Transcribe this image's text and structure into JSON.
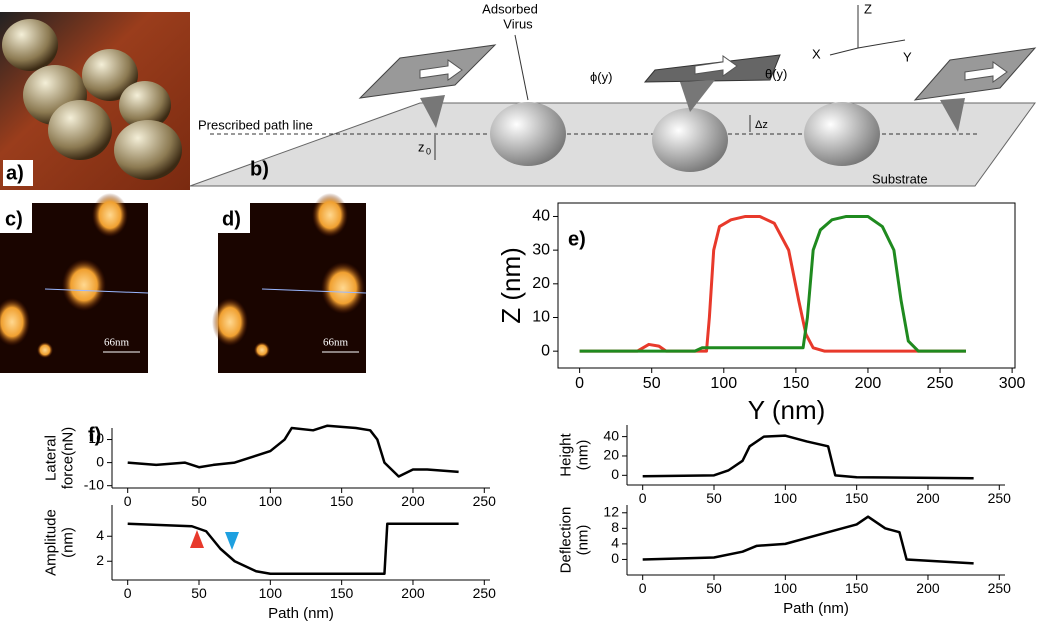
{
  "panels": {
    "a": "a)",
    "b": "b)",
    "c": "c)",
    "d": "d)",
    "e": "e)",
    "f": "f)"
  },
  "scale_bars": [
    "66nm",
    "66nm"
  ],
  "diagram": {
    "adsorbed": [
      "Adsorbed",
      "Virus"
    ],
    "path_line": "Prescribed path line",
    "z0": "z",
    "z0_sub": "0",
    "dz": "Δz",
    "phi": "ϕ(y)",
    "theta": "θ(y)",
    "substrate": "Substrate",
    "axis_z": "Z",
    "axis_x": "X",
    "axis_y": "Y"
  },
  "chart_data": [
    {
      "type": "line",
      "xlabel": "Y (nm)",
      "ylabel": "Z (nm)",
      "xlim": [
        -15,
        302
      ],
      "ylim": [
        -5,
        44
      ],
      "xticks": [
        0,
        50,
        100,
        150,
        200,
        250,
        300
      ],
      "yticks": [
        0,
        10,
        20,
        30,
        40
      ],
      "series": [
        {
          "color": "#e8392b",
          "x": [
            0,
            40,
            48,
            55,
            60,
            88,
            90,
            93,
            97,
            105,
            115,
            125,
            135,
            145,
            152,
            157,
            162,
            170,
            268
          ],
          "values": [
            0,
            0,
            2,
            1.5,
            0,
            0,
            10,
            30,
            37,
            39,
            40,
            40,
            38,
            30,
            15,
            5,
            1,
            0,
            0
          ]
        },
        {
          "color": "#1f8a1f",
          "x": [
            0,
            80,
            85,
            90,
            155,
            158,
            162,
            167,
            175,
            185,
            200,
            210,
            218,
            223,
            228,
            235,
            268
          ],
          "values": [
            0,
            0,
            1,
            1,
            1,
            10,
            30,
            36,
            39,
            40,
            40,
            37,
            30,
            15,
            3,
            0,
            0
          ]
        }
      ]
    },
    {
      "type": "line",
      "ylabel": [
        "Lateral",
        "force(nN)"
      ],
      "xlim": [
        -11,
        254
      ],
      "ylim": [
        -11,
        15
      ],
      "xticks": [
        0,
        50,
        100,
        150,
        200,
        250
      ],
      "yticks": [
        -10,
        0,
        10
      ],
      "series": [
        {
          "color": "#000000",
          "x": [
            0,
            20,
            40,
            50,
            60,
            75,
            90,
            100,
            110,
            115,
            130,
            140,
            160,
            170,
            175,
            180,
            190,
            200,
            210,
            232
          ],
          "values": [
            0,
            -1,
            0,
            -2,
            -1,
            0,
            3,
            5,
            10,
            15,
            14,
            16,
            15,
            14,
            10,
            0,
            -6,
            -3,
            -3,
            -4
          ]
        }
      ]
    },
    {
      "type": "line",
      "ylabel": [
        "Amplitude",
        "(nm)"
      ],
      "xlabel": "Path (nm)",
      "xlim": [
        -11,
        254
      ],
      "ylim": [
        0.5,
        6.5
      ],
      "xticks": [
        0,
        50,
        100,
        150,
        200,
        250
      ],
      "yticks": [
        2,
        4
      ],
      "series": [
        {
          "color": "#000000",
          "x": [
            0,
            45,
            55,
            65,
            75,
            90,
            100,
            180,
            182,
            232
          ],
          "values": [
            5,
            4.8,
            4.4,
            3,
            2,
            1.2,
            1,
            1,
            5,
            5
          ]
        }
      ]
    },
    {
      "type": "line",
      "ylabel": [
        "Height",
        "(nm)"
      ],
      "xlim": [
        -11,
        254
      ],
      "ylim": [
        -10,
        52
      ],
      "xticks": [
        0,
        50,
        100,
        150,
        200,
        250
      ],
      "yticks": [
        0,
        20,
        40
      ],
      "series": [
        {
          "color": "#000000",
          "x": [
            0,
            50,
            60,
            70,
            75,
            85,
            100,
            115,
            130,
            135,
            150,
            232
          ],
          "values": [
            -1,
            0,
            5,
            15,
            30,
            40,
            41,
            35,
            30,
            0,
            -2,
            -3
          ]
        }
      ]
    },
    {
      "type": "line",
      "ylabel": [
        "Deflection",
        "(nm)"
      ],
      "xlabel": "Path (nm)",
      "xlim": [
        -11,
        254
      ],
      "ylim": [
        -4,
        14
      ],
      "xticks": [
        0,
        50,
        100,
        150,
        200,
        250
      ],
      "yticks": [
        0,
        4,
        8,
        12
      ],
      "series": [
        {
          "color": "#000000",
          "x": [
            0,
            50,
            70,
            80,
            100,
            130,
            150,
            158,
            170,
            180,
            185,
            232
          ],
          "values": [
            0,
            0.5,
            2,
            3.5,
            4,
            7,
            9,
            11,
            8,
            7,
            0,
            -1
          ]
        }
      ]
    }
  ]
}
